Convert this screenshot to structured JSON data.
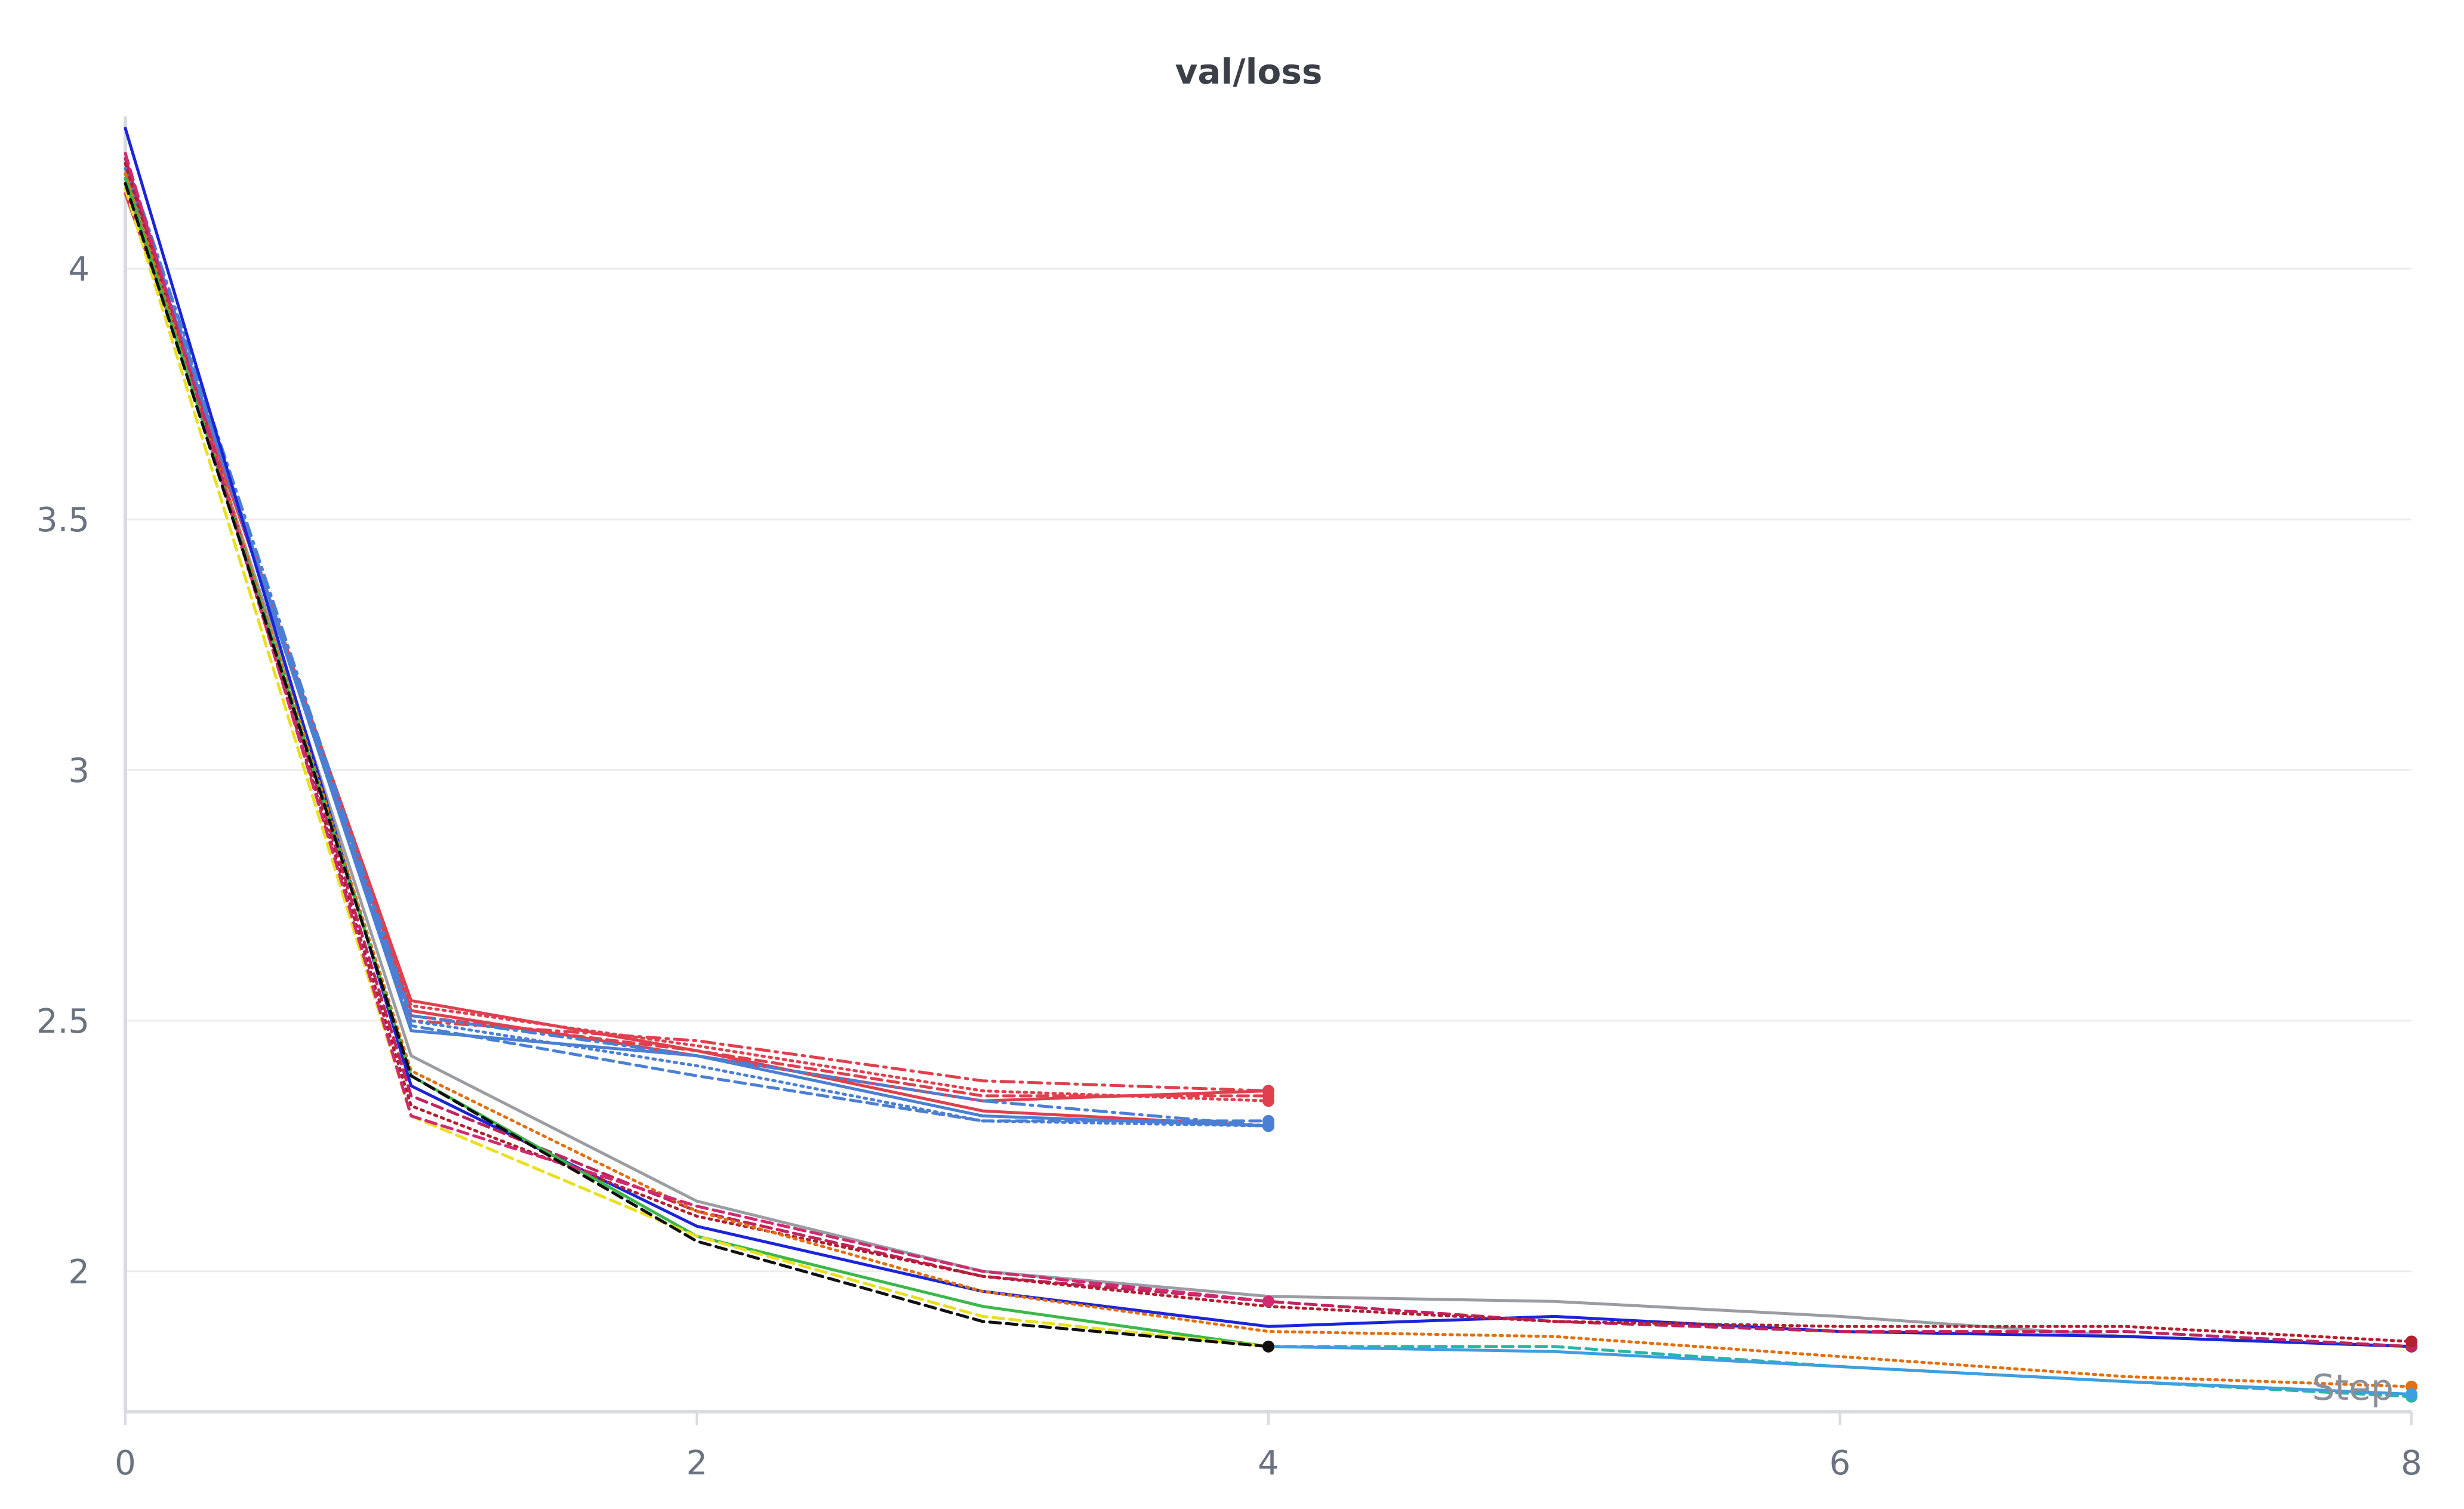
{
  "chart_data": {
    "type": "line",
    "title": "val/loss",
    "xlabel": "Step",
    "ylabel": "",
    "xlim": [
      0,
      8
    ],
    "ylim": [
      1.72,
      4.28
    ],
    "xticks": [
      0,
      2,
      4,
      6,
      8
    ],
    "yticks": [
      2,
      2.5,
      3,
      3.5,
      4
    ],
    "xtick_labels": [
      "0",
      "2",
      "4",
      "6",
      "8"
    ],
    "ytick_labels": [
      "2",
      "2.5",
      "3",
      "3.5",
      "4"
    ],
    "grid": true,
    "legend": "none",
    "series": [
      {
        "color": "#e0404e",
        "dash": "solid",
        "x": [
          0,
          1,
          2,
          3,
          4
        ],
        "y": [
          4.15,
          2.54,
          2.44,
          2.32,
          2.29
        ]
      },
      {
        "color": "#e0404e",
        "dash": "solid",
        "x": [
          0,
          1,
          2,
          3,
          4
        ],
        "y": [
          4.16,
          2.52,
          2.43,
          2.34,
          2.36
        ]
      },
      {
        "color": "#e0404e",
        "dash": "dashdot",
        "x": [
          0,
          1,
          2,
          3,
          4
        ],
        "y": [
          4.18,
          2.5,
          2.46,
          2.38,
          2.36
        ]
      },
      {
        "color": "#e0404e",
        "dash": "dotted",
        "x": [
          0,
          1,
          2,
          3,
          4
        ],
        "y": [
          4.17,
          2.53,
          2.45,
          2.36,
          2.34
        ]
      },
      {
        "color": "#e0404e",
        "dash": "dashed",
        "x": [
          0,
          1,
          2,
          3,
          4
        ],
        "y": [
          4.19,
          2.51,
          2.44,
          2.35,
          2.35
        ]
      },
      {
        "color": "#4a7fd4",
        "dash": "solid",
        "x": [
          0,
          1,
          2,
          3,
          4
        ],
        "y": [
          4.2,
          2.48,
          2.43,
          2.31,
          2.29
        ]
      },
      {
        "color": "#4a7fd4",
        "dash": "dashed",
        "x": [
          0,
          1,
          2,
          3,
          4
        ],
        "y": [
          4.21,
          2.49,
          2.39,
          2.3,
          2.3
        ]
      },
      {
        "color": "#4a7fd4",
        "dash": "dotted",
        "x": [
          0,
          1,
          2,
          3,
          4
        ],
        "y": [
          4.19,
          2.5,
          2.41,
          2.3,
          2.29
        ]
      },
      {
        "color": "#4a7fd4",
        "dash": "dashdot",
        "x": [
          0,
          1,
          2,
          3,
          4
        ],
        "y": [
          4.22,
          2.51,
          2.43,
          2.34,
          2.29
        ]
      },
      {
        "color": "#9a9ea3",
        "dash": "solid",
        "x": [
          0,
          1,
          2,
          3,
          4,
          5,
          6,
          7,
          8
        ],
        "y": [
          4.18,
          2.43,
          2.14,
          2.0,
          1.95,
          1.94,
          1.91,
          1.87,
          1.85
        ]
      },
      {
        "color": "#1c24d9",
        "dash": "solid",
        "x": [
          0,
          1,
          2,
          3,
          4,
          5,
          6,
          7,
          8
        ],
        "y": [
          4.28,
          2.37,
          2.09,
          1.96,
          1.89,
          1.91,
          1.88,
          1.87,
          1.85
        ]
      },
      {
        "color": "#c0245e",
        "dash": "dashed",
        "x": [
          0,
          1,
          2,
          3,
          4,
          5,
          6,
          7,
          8
        ],
        "y": [
          4.22,
          2.35,
          2.12,
          1.99,
          1.94,
          1.9,
          1.88,
          1.88,
          1.85
        ]
      },
      {
        "color": "#b22030",
        "dash": "dotted",
        "x": [
          0,
          1,
          2,
          3,
          4,
          5,
          6,
          7,
          8
        ],
        "y": [
          4.21,
          2.33,
          2.11,
          1.99,
          1.93,
          1.9,
          1.89,
          1.89,
          1.86
        ]
      },
      {
        "color": "#e07010",
        "dash": "dotted",
        "x": [
          0,
          1,
          2,
          3,
          4,
          5,
          6,
          7,
          8
        ],
        "y": [
          4.19,
          2.4,
          2.12,
          1.96,
          1.88,
          1.87,
          1.83,
          1.79,
          1.77
        ]
      },
      {
        "color": "#2bb5a6",
        "dash": "dashed",
        "x": [
          4,
          5,
          6,
          7,
          8
        ],
        "y": [
          1.85,
          1.85,
          1.81,
          1.78,
          1.75
        ]
      },
      {
        "color": "#3e9ee0",
        "dash": "solid",
        "x": [
          4,
          5,
          6,
          7,
          8
        ],
        "y": [
          1.85,
          1.84,
          1.81,
          1.78,
          1.755
        ]
      },
      {
        "color": "#3cb84a",
        "dash": "solid",
        "x": [
          0,
          1,
          2,
          3,
          4
        ],
        "y": [
          4.18,
          2.39,
          2.07,
          1.93,
          1.85
        ]
      },
      {
        "color": "#e8e020",
        "dash": "dashed",
        "x": [
          0,
          1,
          2,
          3,
          4
        ],
        "y": [
          4.16,
          2.31,
          2.07,
          1.91,
          1.85
        ]
      },
      {
        "color": "#d02a70",
        "dash": "dashed",
        "x": [
          0,
          1,
          2,
          3,
          4
        ],
        "y": [
          4.23,
          2.31,
          2.13,
          2.0,
          1.94
        ]
      },
      {
        "color": "#101010",
        "dash": "dashed",
        "x": [
          0,
          1,
          2,
          3,
          4
        ],
        "y": [
          4.17,
          2.39,
          2.06,
          1.9,
          1.85
        ]
      }
    ]
  }
}
